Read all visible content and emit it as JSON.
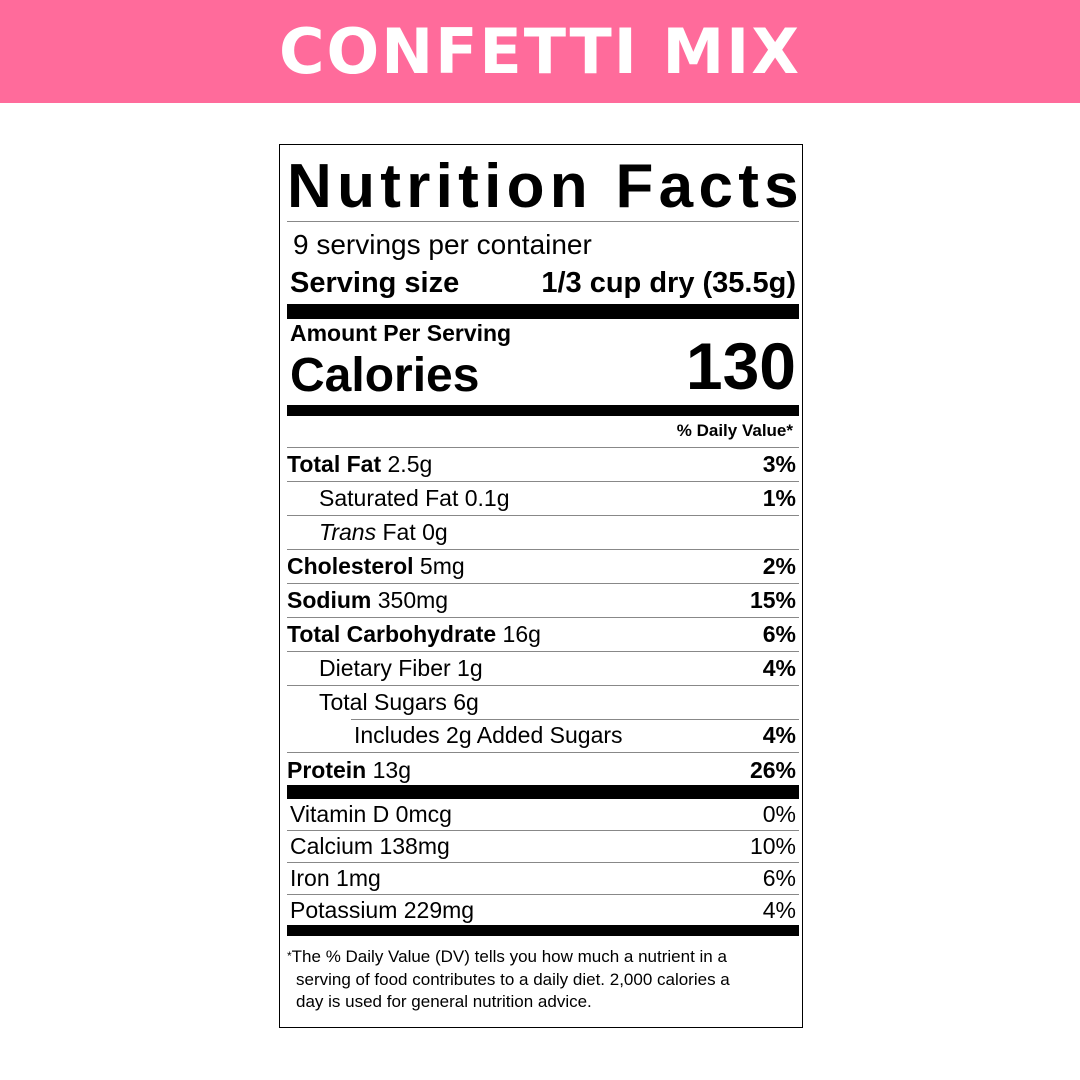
{
  "banner": {
    "title": "CONFETTI MIX",
    "color": "#ff6b9b"
  },
  "label": {
    "title": "Nutrition Facts",
    "servings": "9 servings per container",
    "serving_size_label": "Serving size",
    "serving_size_value": "1/3 cup dry (35.5g)",
    "amount_per_serving": "Amount Per Serving",
    "calories_label": "Calories",
    "calories_value": "130",
    "dv_header": "% Daily Value*",
    "nutrients": [
      {
        "bold": "Total Fat",
        "amount": " 2.5g",
        "dv": "3%"
      },
      {
        "bold": "",
        "amount": "Saturated Fat 0.1g",
        "dv": "1%"
      },
      {
        "italic": "Trans",
        "amount": " Fat 0g",
        "dv": ""
      },
      {
        "bold": "Cholesterol",
        "amount": " 5mg",
        "dv": "2%"
      },
      {
        "bold": "Sodium",
        "amount": " 350mg",
        "dv": "15%"
      },
      {
        "bold": "Total Carbohydrate",
        "amount": " 16g",
        "dv": "6%"
      },
      {
        "bold": "",
        "amount": "Dietary Fiber 1g",
        "dv": "4%"
      },
      {
        "bold": "",
        "amount": "Total Sugars 6g",
        "dv": ""
      },
      {
        "bold": "",
        "amount": "Includes 2g Added Sugars",
        "dv": "4%"
      },
      {
        "bold": "Protein",
        "amount": " 13g",
        "dv": "26%"
      }
    ],
    "vitamins": [
      {
        "name": "Vitamin D 0mcg",
        "dv": "0%"
      },
      {
        "name": "Calcium 138mg",
        "dv": "10%"
      },
      {
        "name": "Iron 1mg",
        "dv": "6%"
      },
      {
        "name": "Potassium 229mg",
        "dv": "4%"
      }
    ],
    "footnote_star": "*",
    "footnote_1": "The % Daily Value (DV) tells you how much a nutrient in a",
    "footnote_2": "serving of food contributes to a daily diet. 2,000 calories a",
    "footnote_3": "day is used for general nutrition advice."
  }
}
